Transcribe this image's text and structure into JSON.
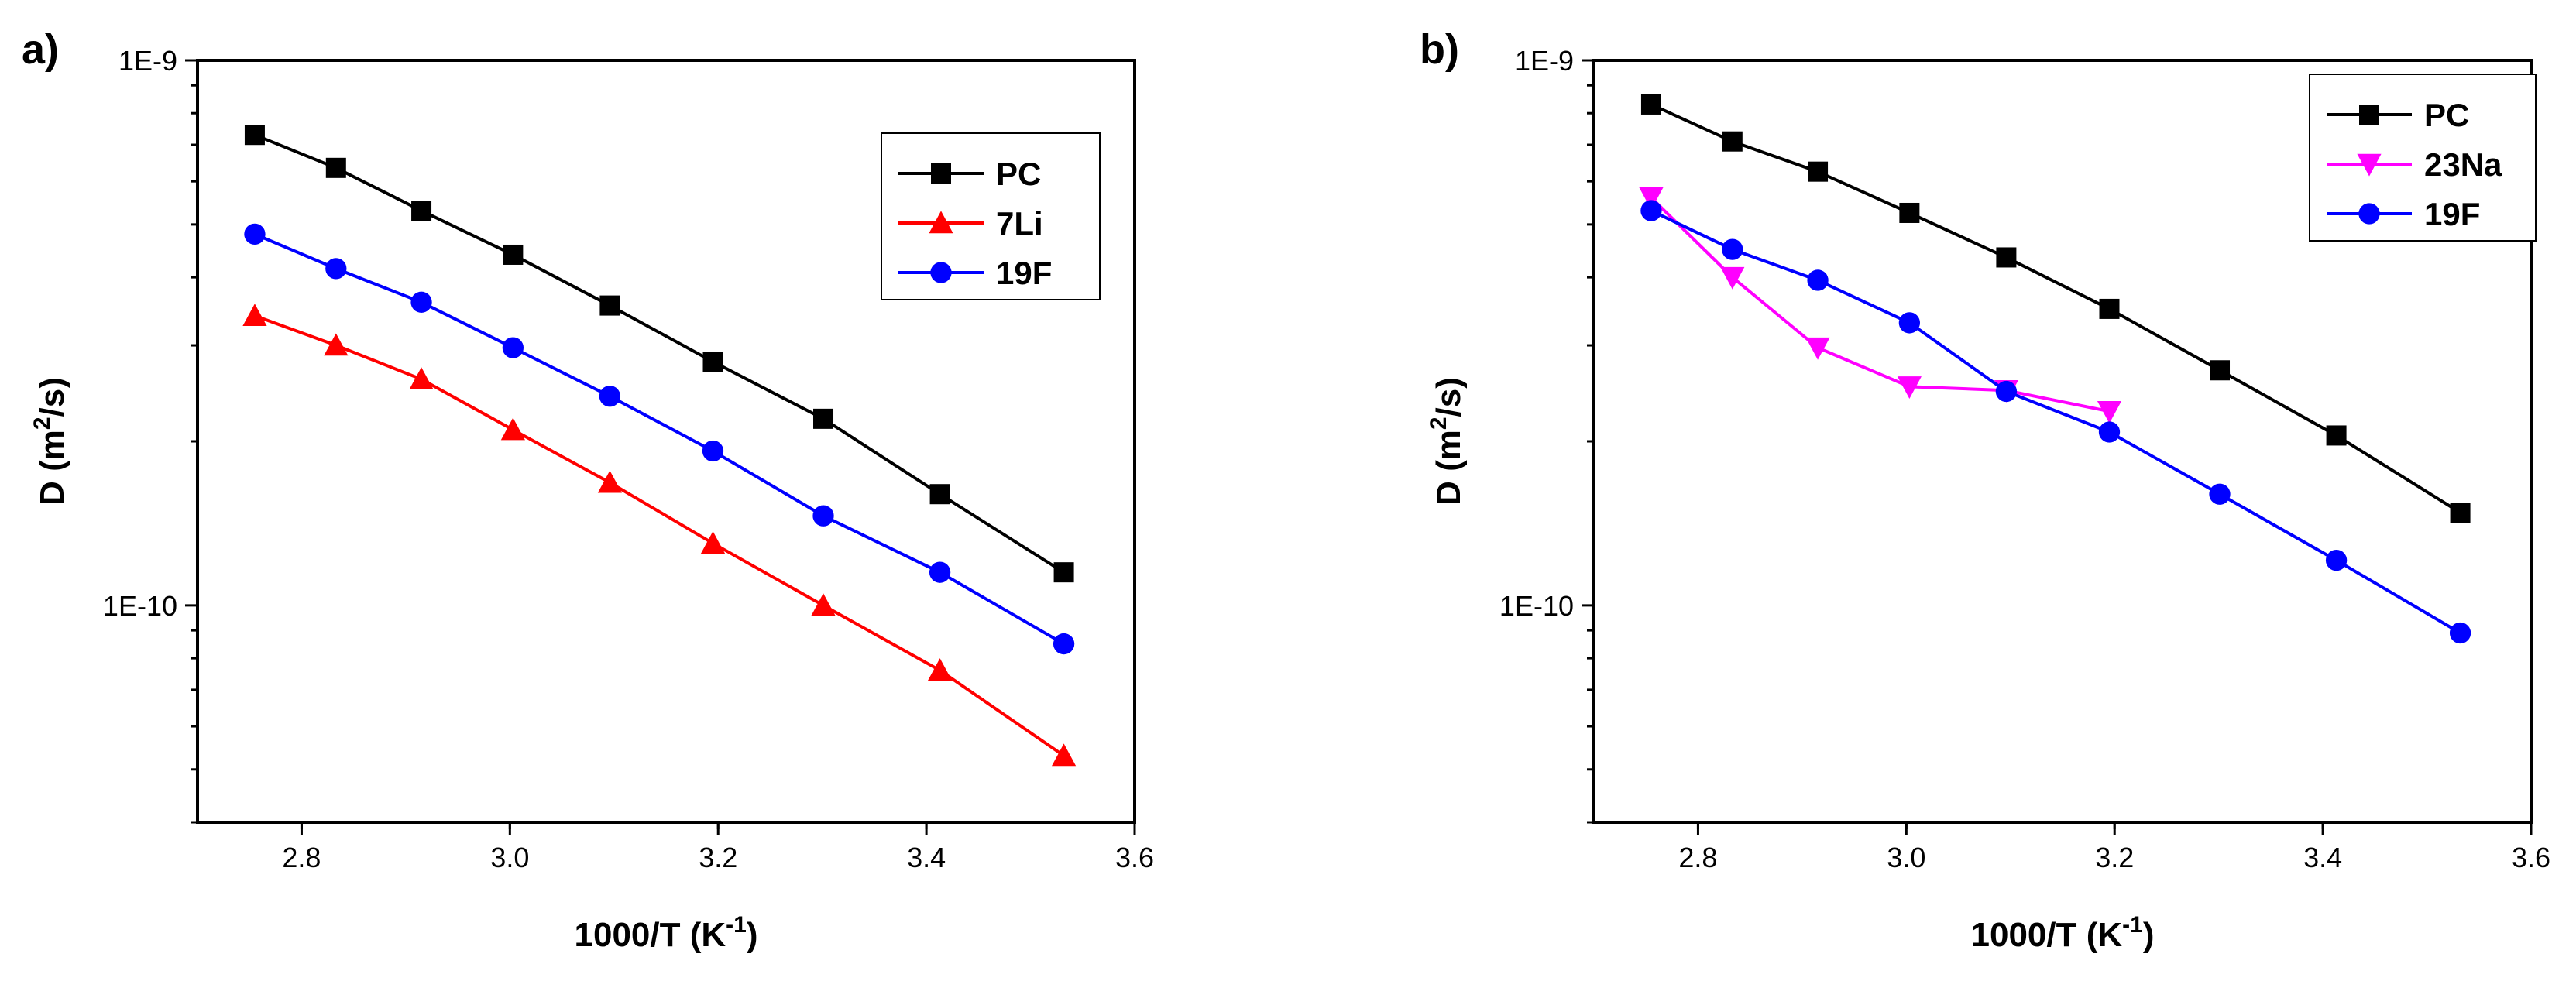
{
  "chart_data": [
    {
      "panel_label": "a)",
      "type": "line",
      "xlabel_main": "1000/T (K",
      "xlabel_sup": "-1",
      "xlabel_end": ")",
      "ylabel_main": "D (m",
      "ylabel_sup": "2",
      "ylabel_end": "/s)",
      "xlim": [
        2.7,
        3.6
      ],
      "ylim": [
        4e-11,
        1e-09
      ],
      "yscale": "log",
      "xticks": [
        2.8,
        3.0,
        3.2,
        3.4,
        3.6
      ],
      "xtick_labels": [
        "2.8",
        "3.0",
        "3.2",
        "3.4",
        "3.6"
      ],
      "yticks": [
        1e-09,
        1e-10
      ],
      "ytick_labels": [
        "1E-9",
        "1E-10"
      ],
      "legend_position": "top-right",
      "x": [
        2.755,
        2.833,
        2.915,
        3.003,
        3.096,
        3.195,
        3.301,
        3.413,
        3.532
      ],
      "series": [
        {
          "name": "PC",
          "color": "#000000",
          "marker": "square",
          "values": [
            7.3e-10,
            6.35e-10,
            5.3e-10,
            4.4e-10,
            3.55e-10,
            2.8e-10,
            2.2e-10,
            1.6e-10,
            1.15e-10
          ]
        },
        {
          "name": "7Li",
          "color": "#ff0000",
          "marker": "triangle-up",
          "values": [
            3.4e-10,
            3e-10,
            2.6e-10,
            2.1e-10,
            1.68e-10,
            1.3e-10,
            1e-10,
            7.6e-11,
            5.3e-11
          ]
        },
        {
          "name": "19F",
          "color": "#0000ff",
          "marker": "circle",
          "values": [
            4.8e-10,
            4.15e-10,
            3.6e-10,
            2.97e-10,
            2.42e-10,
            1.92e-10,
            1.46e-10,
            1.15e-10,
            8.5e-11
          ]
        }
      ]
    },
    {
      "panel_label": "b)",
      "type": "line",
      "xlabel_main": "1000/T (K",
      "xlabel_sup": "-1",
      "xlabel_end": ")",
      "ylabel_main": "D (m",
      "ylabel_sup": "2",
      "ylabel_end": "/s)",
      "xlim": [
        2.7,
        3.6
      ],
      "ylim": [
        4e-11,
        1e-09
      ],
      "yscale": "log",
      "xticks": [
        2.8,
        3.0,
        3.2,
        3.4,
        3.6
      ],
      "xtick_labels": [
        "2.8",
        "3.0",
        "3.2",
        "3.4",
        "3.6"
      ],
      "yticks": [
        1e-09,
        1e-10
      ],
      "ytick_labels": [
        "1E-9",
        "1E-10"
      ],
      "legend_position": "top-right",
      "series": [
        {
          "name": "PC",
          "color": "#000000",
          "marker": "square",
          "x": [
            2.755,
            2.833,
            2.915,
            3.003,
            3.096,
            3.195,
            3.301,
            3.413,
            3.532
          ],
          "values": [
            8.3e-10,
            7.1e-10,
            6.25e-10,
            5.25e-10,
            4.35e-10,
            3.5e-10,
            2.7e-10,
            2.05e-10,
            1.48e-10
          ]
        },
        {
          "name": "23Na",
          "color": "#ff00ff",
          "marker": "triangle-down",
          "x": [
            2.755,
            2.833,
            2.915,
            3.003,
            3.096,
            3.195
          ],
          "values": [
            5.6e-10,
            4e-10,
            2.97e-10,
            2.52e-10,
            2.48e-10,
            2.27e-10
          ]
        },
        {
          "name": "19F",
          "color": "#0000ff",
          "marker": "circle",
          "x": [
            2.755,
            2.833,
            2.915,
            3.003,
            3.096,
            3.195,
            3.301,
            3.413,
            3.532
          ],
          "values": [
            5.3e-10,
            4.5e-10,
            3.95e-10,
            3.3e-10,
            2.47e-10,
            2.08e-10,
            1.6e-10,
            1.21e-10,
            8.9e-11
          ]
        }
      ]
    }
  ]
}
